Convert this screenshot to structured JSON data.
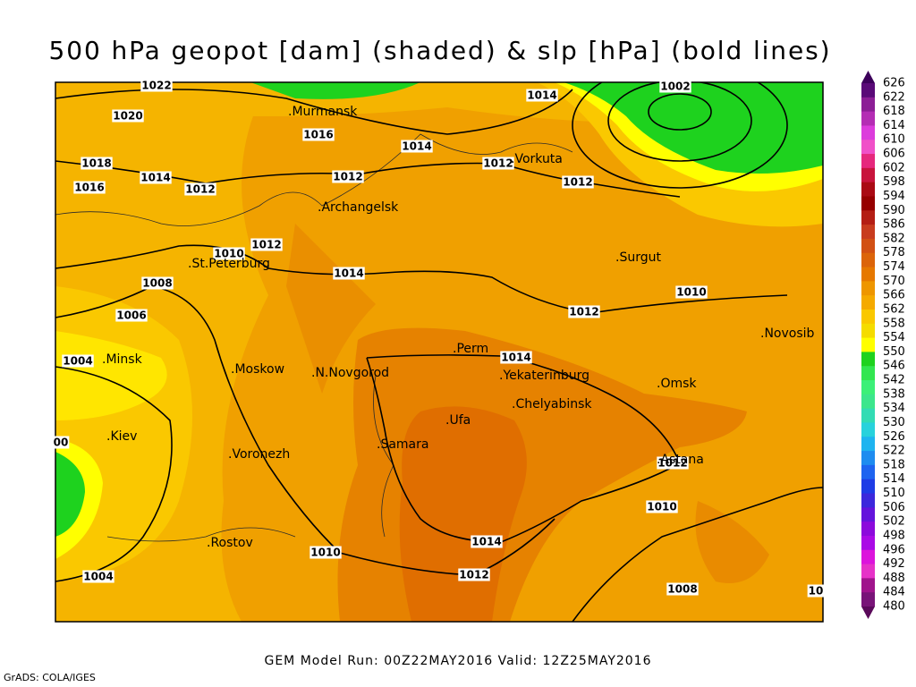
{
  "title": "500 hPa geopot [dam] (shaded) & slp [hPa] (bold lines)",
  "isobar_labels": [
    "1022",
    "1020",
    "1016",
    "1014",
    "1014",
    "1002",
    "1018",
    "1014",
    "1012",
    "1016",
    "1012",
    "1012",
    "1012",
    "1010",
    "1012",
    "1014",
    "1008",
    "1010",
    "1012",
    "1006",
    "1014",
    "1004",
    "1012",
    "1010",
    "1014",
    "1010",
    "1012",
    "1004",
    "1008",
    "00",
    "10"
  ],
  "city_labels": [
    ".Murmansk",
    ".Vorkuta",
    ".Archangelsk",
    ".Surgut",
    ".St.Peterburg",
    ".Novosib",
    ".Minsk",
    ".Perm",
    ".Yekaterinburg",
    ".Moskow",
    ".N.Novgorod",
    ".Omsk",
    ".Chelyabinsk",
    ".Ufa",
    ".Kiev",
    ".Samara",
    ".Voronezh",
    ".Astana",
    ".Rostov"
  ],
  "colorbar": {
    "labels": [
      626,
      622,
      618,
      614,
      610,
      606,
      602,
      598,
      594,
      590,
      586,
      582,
      578,
      574,
      570,
      566,
      562,
      558,
      554,
      550,
      546,
      542,
      538,
      534,
      530,
      526,
      522,
      518,
      514,
      510,
      506,
      502,
      498,
      496,
      492,
      488,
      484,
      480
    ],
    "colors": [
      "#5a0a78",
      "#8c1e96",
      "#b42db4",
      "#dc3cdc",
      "#f050c8",
      "#e6287d",
      "#c8143c",
      "#aa0a14",
      "#960000",
      "#b41e14",
      "#c83c1e",
      "#d25014",
      "#dc640a",
      "#e67800",
      "#ee9600",
      "#f5aa00",
      "#fac800",
      "#f5dc00",
      "#ffff00",
      "#1ed21e",
      "#32e650",
      "#3cf078",
      "#3ce68c",
      "#32dcb4",
      "#28d2dc",
      "#1eb4f0",
      "#1e8cf0",
      "#1e64f0",
      "#1e3ce6",
      "#3c28dc",
      "#6414dc",
      "#8c0adc",
      "#aa0ae6",
      "#dc14dc",
      "#e632c8",
      "#a0148c",
      "#781478"
    ],
    "top_color": "#3c005a",
    "bottom_color": "#5a0a5a"
  },
  "footer": {
    "run": "GEM Model Run: 00Z22MAY2016 Valid: 12Z25MAY2016",
    "credit": "GrADS: COLA/IGES"
  }
}
